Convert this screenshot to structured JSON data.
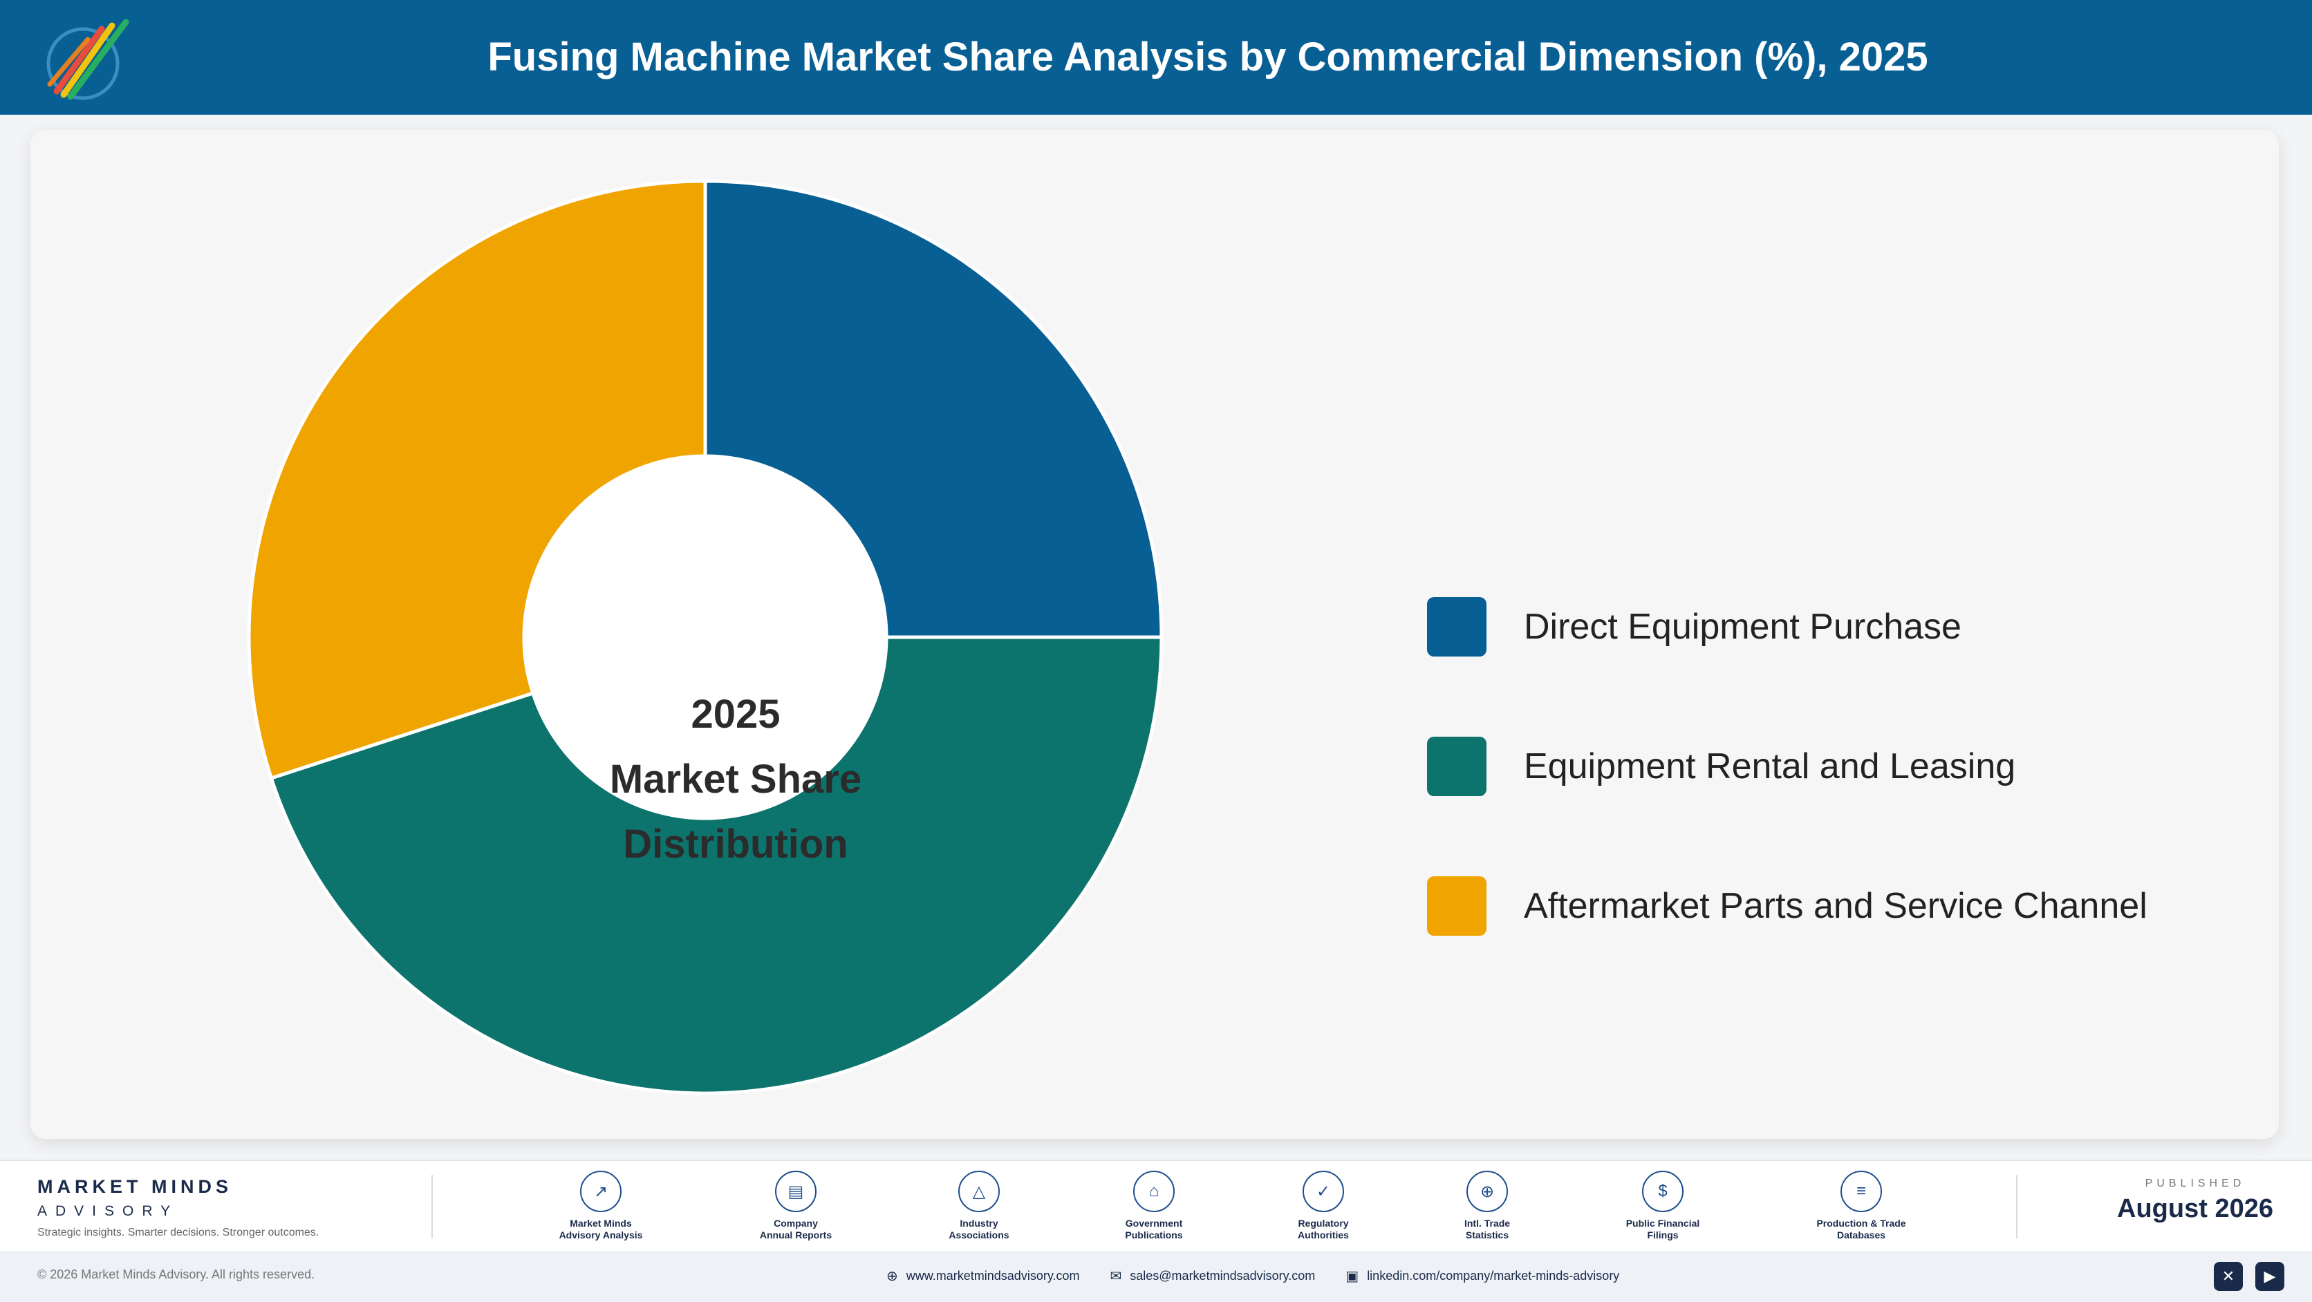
{
  "header": {
    "title": "Fusing Machine Market Share Analysis by Commercial Dimension (%), 2025"
  },
  "chart_data": {
    "type": "pie",
    "donut": true,
    "categories": [
      "Direct Equipment Purchase",
      "Equipment Rental and Leasing",
      "Aftermarket Parts and Service Channel"
    ],
    "values": [
      25,
      45,
      30
    ],
    "colors": [
      "#085f94",
      "#0c736d",
      "#f0a400"
    ],
    "center_label": [
      "2025",
      "Market Share",
      "Distribution"
    ],
    "legend_position": "right"
  },
  "footer": {
    "brand_name": "MARKET MINDS",
    "brand_sub": "ADVISORY",
    "tagline": "Strategic insights. Smarter decisions. Stronger outcomes.",
    "sources": [
      {
        "icon": "chart-line-icon",
        "glyph": "↗",
        "label": "Market Minds\nAdvisory Analysis"
      },
      {
        "icon": "document-icon",
        "glyph": "▤",
        "label": "Company\nAnnual Reports"
      },
      {
        "icon": "network-icon",
        "glyph": "△",
        "label": "Industry\nAssociations"
      },
      {
        "icon": "bank-icon",
        "glyph": "⌂",
        "label": "Government\nPublications"
      },
      {
        "icon": "shield-icon",
        "glyph": "✓",
        "label": "Regulatory\nAuthorities"
      },
      {
        "icon": "globe-icon",
        "glyph": "⊕",
        "label": "Intl. Trade\nStatistics"
      },
      {
        "icon": "dollar-icon",
        "glyph": "$",
        "label": "Public Financial\nFilings"
      },
      {
        "icon": "database-icon",
        "glyph": "≡",
        "label": "Production & Trade\nDatabases"
      }
    ],
    "published_label": "PUBLISHED",
    "published_date": "August 2026",
    "copyright": "© 2026 Market Minds Advisory. All rights reserved.",
    "website": "www.marketmindsadvisory.com",
    "email": "sales@marketmindsadvisory.com",
    "linkedin": "linkedin.com/company/market-minds-advisory"
  }
}
